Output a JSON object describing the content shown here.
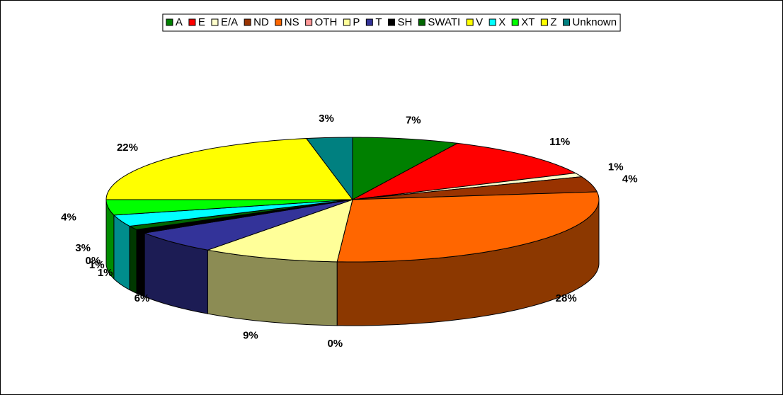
{
  "chart_data": {
    "type": "pie",
    "categories": [
      "A",
      "E",
      "E/A",
      "ND",
      "NS",
      "OTH",
      "P",
      "T",
      "SH",
      "SWATI",
      "V",
      "X",
      "XT",
      "Z",
      "Unknown"
    ],
    "values": [
      7,
      11,
      1,
      4,
      28,
      0,
      9,
      6,
      1,
      1,
      0,
      3,
      4,
      22,
      3
    ],
    "value_labels": [
      "7%",
      "11%",
      "1%",
      "4%",
      "28%",
      "0%",
      "9%",
      "6%",
      "1%",
      "1%",
      "0%",
      "3%",
      "4%",
      "22%",
      "3%"
    ],
    "colors": [
      "#008000",
      "#ff0000",
      "#ffffcc",
      "#993300",
      "#ff6600",
      "#ff9999",
      "#ffff99",
      "#333399",
      "#000000",
      "#006600",
      "#ffff00",
      "#00ffff",
      "#00ff00",
      "#ffff00",
      "#008080"
    ],
    "legend": "top"
  }
}
